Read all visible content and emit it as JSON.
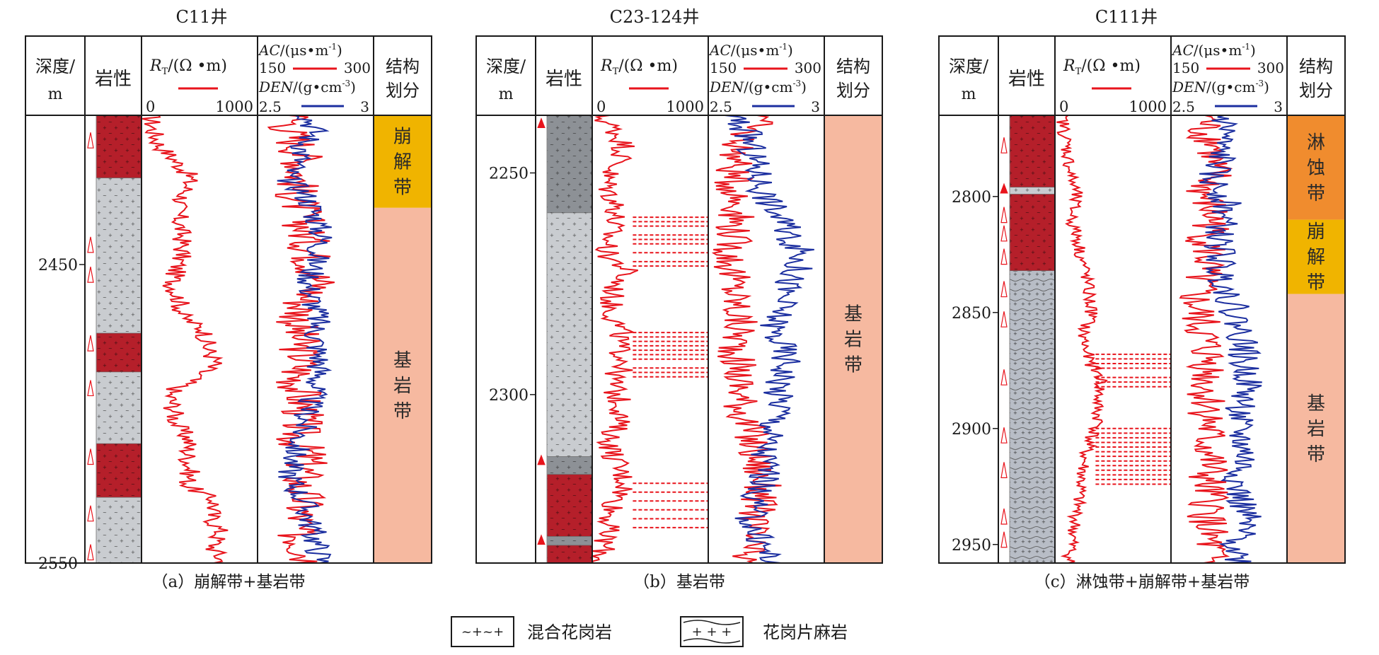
{
  "headers": {
    "depth": [
      "深度/",
      "m"
    ],
    "lith": "岩性",
    "rt": {
      "sym": "R",
      "sub": "T",
      "unit": "/(Ω •m)",
      "min": "0",
      "max": "1000"
    },
    "ac": {
      "sym": "AC",
      "unit_a": "/(μs•m",
      "unit_sup": "-1",
      "unit_b": ")",
      "min": "150",
      "max": "300"
    },
    "den": {
      "sym": "DEN",
      "unit_a": "/(g•cm",
      "unit_sup": "-3",
      "unit_b": ")",
      "min": "2.5",
      "max": "3"
    },
    "zone": [
      "结构",
      "划分"
    ]
  },
  "colors": {
    "rt": "#e8141c",
    "ac": "#e8141c",
    "den": "#1c2fa0",
    "weathered": "#f0b400",
    "leached": "#f08c2e",
    "bedrock": "#f6b9a0",
    "granite_red": "#b51f2a",
    "granite_gray": "#c9ccd0",
    "granite_dark": "#8d9196",
    "gneiss": "#b8bdc6",
    "frame": "#1a1a1a"
  },
  "wells": [
    {
      "title": "C11井",
      "caption": "（a）崩解带+基岩带",
      "top": 2400,
      "bottom": 2550,
      "depth_ticks": [
        "2450",
        "2550"
      ],
      "depth_tick_values": [
        2450,
        2550
      ],
      "lithology": [
        {
          "from": 2400,
          "to": 2421,
          "type": "granite_red"
        },
        {
          "from": 2421,
          "to": 2473,
          "type": "granite_gray"
        },
        {
          "from": 2473,
          "to": 2486,
          "type": "granite_red"
        },
        {
          "from": 2486,
          "to": 2510,
          "type": "granite_gray"
        },
        {
          "from": 2510,
          "to": 2528,
          "type": "granite_red"
        },
        {
          "from": 2528,
          "to": 2550,
          "type": "granite_gray"
        }
      ],
      "zones": [
        {
          "label": "崩解带",
          "from": 2400,
          "to": 2431,
          "color": "weathered"
        },
        {
          "label": "基岩带",
          "from": 2431,
          "to": 2550,
          "color": "bedrock"
        }
      ],
      "fracture_marks": [
        2410,
        2445,
        2455,
        2478,
        2493,
        2516,
        2535,
        2548
      ],
      "filled_marks": [],
      "rt_base": [
        80,
        100,
        160,
        300,
        420,
        380,
        310,
        330,
        350,
        350,
        300,
        270,
        330,
        350,
        550,
        560,
        640,
        460,
        240,
        280,
        300,
        410,
        400,
        420,
        400,
        640,
        600,
        680,
        620,
        700
      ],
      "rt_noise": 90,
      "rt_spikes": [],
      "ac_base": [
        200,
        190,
        205,
        210,
        205,
        200,
        205,
        210,
        215,
        220,
        225,
        230,
        210,
        205,
        200,
        205,
        210,
        200,
        205,
        210,
        205,
        200,
        215,
        210,
        205,
        210,
        205,
        200,
        210,
        220
      ],
      "ac_noise": 30,
      "den_base": [
        2.72,
        2.75,
        2.7,
        2.68,
        2.62,
        2.7,
        2.74,
        2.76,
        2.78,
        2.76,
        2.74,
        2.72,
        2.74,
        2.76,
        2.75,
        2.76,
        2.77,
        2.76,
        2.74,
        2.72,
        2.7,
        2.68,
        2.66,
        2.64,
        2.66,
        2.7,
        2.72,
        2.74,
        2.76,
        2.78
      ],
      "den_noise": 0.06
    },
    {
      "title": "C23-124井",
      "caption": "（b）基岩带",
      "top": 2237,
      "bottom": 2338,
      "depth_ticks": [
        "2250",
        "2300"
      ],
      "depth_tick_values": [
        2250,
        2300
      ],
      "lithology": [
        {
          "from": 2237,
          "to": 2259,
          "type": "granite_dark"
        },
        {
          "from": 2259,
          "to": 2314,
          "type": "granite_gray"
        },
        {
          "from": 2314,
          "to": 2318,
          "type": "granite_dark"
        },
        {
          "from": 2318,
          "to": 2332,
          "type": "granite_red"
        },
        {
          "from": 2332,
          "to": 2334,
          "type": "granite_dark"
        },
        {
          "from": 2334,
          "to": 2338,
          "type": "granite_red"
        }
      ],
      "zones": [
        {
          "label": "基岩带",
          "from": 2237,
          "to": 2338,
          "color": "bedrock"
        }
      ],
      "fracture_marks": [],
      "filled_marks": [
        2239,
        2315,
        2333
      ],
      "rt_base": [
        60,
        200,
        280,
        240,
        120,
        150,
        220,
        180,
        140,
        120,
        300,
        200,
        160,
        180,
        250,
        220,
        300,
        180,
        200,
        260,
        220,
        150,
        180,
        240,
        300,
        200,
        160,
        120,
        100,
        60
      ],
      "rt_noise": 110,
      "rt_spikes": [
        2260,
        2261,
        2262,
        2264,
        2265,
        2266,
        2268,
        2270,
        2271,
        2286,
        2287,
        2288,
        2289,
        2290,
        2291,
        2292,
        2294,
        2295,
        2296,
        2320,
        2322,
        2324,
        2326,
        2328,
        2330
      ],
      "ac_base": [
        220,
        200,
        190,
        185,
        180,
        185,
        190,
        185,
        182,
        178,
        180,
        182,
        185,
        188,
        190,
        185,
        188,
        190,
        192,
        195,
        200,
        205,
        210,
        215,
        220,
        215,
        210,
        205,
        200,
        195
      ],
      "ac_noise": 25,
      "den_base": [
        2.6,
        2.66,
        2.68,
        2.7,
        2.72,
        2.74,
        2.78,
        2.82,
        2.86,
        2.9,
        2.88,
        2.84,
        2.82,
        2.8,
        2.78,
        2.82,
        2.84,
        2.82,
        2.8,
        2.82,
        2.78,
        2.76,
        2.74,
        2.76,
        2.72,
        2.7,
        2.68,
        2.7,
        2.74,
        2.78
      ],
      "den_noise": 0.07
    },
    {
      "title": "C111井",
      "caption": "（c）淋蚀带+崩解带+基岩带",
      "top": 2765,
      "bottom": 2958,
      "depth_ticks": [
        "2800",
        "2850",
        "2900",
        "2950"
      ],
      "depth_tick_values": [
        2800,
        2850,
        2900,
        2950
      ],
      "lithology": [
        {
          "from": 2765,
          "to": 2796,
          "type": "granite_red"
        },
        {
          "from": 2796,
          "to": 2799,
          "type": "granite_gray"
        },
        {
          "from": 2799,
          "to": 2832,
          "type": "granite_red"
        },
        {
          "from": 2832,
          "to": 2958,
          "type": "gneiss"
        }
      ],
      "zones": [
        {
          "label": "淋蚀带",
          "from": 2765,
          "to": 2810,
          "color": "leached"
        },
        {
          "label": "崩解带",
          "from": 2810,
          "to": 2842,
          "color": "weathered"
        },
        {
          "label": "基岩带",
          "from": 2842,
          "to": 2958,
          "color": "bedrock"
        }
      ],
      "fracture_marks": [
        2780,
        2810,
        2818,
        2828,
        2842,
        2855,
        2880,
        2905,
        2920,
        2940,
        2950
      ],
      "filled_marks": [
        2797
      ],
      "rt_base": [
        60,
        80,
        100,
        120,
        140,
        180,
        160,
        150,
        200,
        220,
        260,
        280,
        300,
        320,
        240,
        260,
        300,
        400,
        380,
        360,
        380,
        300,
        260,
        240,
        220,
        200,
        180,
        160,
        140,
        120
      ],
      "rt_noise": 60,
      "rt_spikes": [
        2868,
        2870,
        2872,
        2874,
        2878,
        2880,
        2882,
        2900,
        2902,
        2904,
        2906,
        2908,
        2910,
        2912,
        2914,
        2916,
        2918,
        2920,
        2922,
        2924
      ],
      "ac_base": [
        200,
        190,
        210,
        200,
        205,
        190,
        200,
        205,
        195,
        200,
        190,
        185,
        180,
        185,
        190,
        195,
        200,
        198,
        195,
        200,
        198,
        196,
        200,
        198,
        195,
        200,
        198,
        196,
        200,
        198
      ],
      "ac_noise": 28,
      "den_base": [
        2.72,
        2.74,
        2.7,
        2.72,
        2.66,
        2.72,
        2.74,
        2.72,
        2.7,
        2.72,
        2.7,
        2.74,
        2.76,
        2.78,
        2.8,
        2.82,
        2.8,
        2.84,
        2.82,
        2.8,
        2.78,
        2.8,
        2.82,
        2.8,
        2.78,
        2.8,
        2.82,
        2.8,
        2.78,
        2.8
      ],
      "den_noise": 0.07
    }
  ],
  "legend": [
    {
      "label": "混合花岗岩",
      "key": "migmatite"
    },
    {
      "label": "花岗片麻岩",
      "key": "gneiss"
    }
  ]
}
